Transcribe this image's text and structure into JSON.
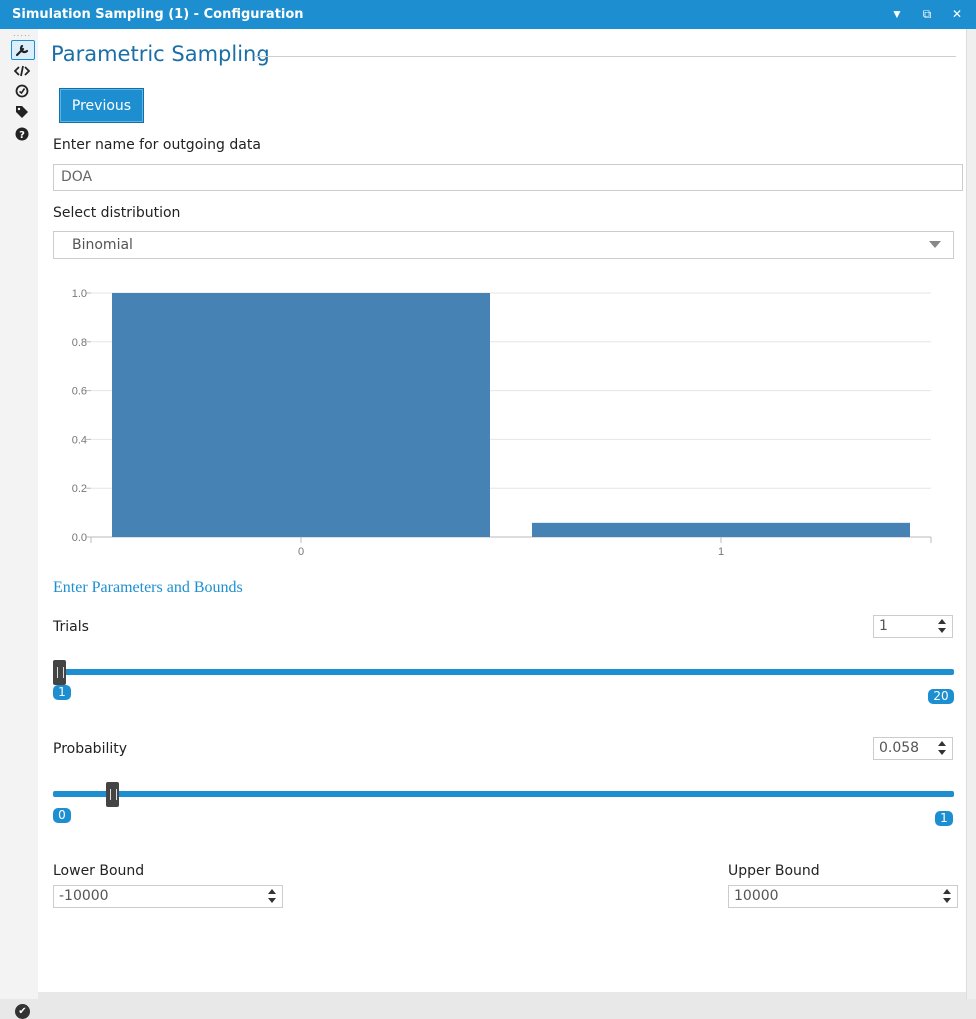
{
  "window": {
    "title": "Simulation Sampling (1) - Configuration",
    "btn_dropdown": "▼",
    "btn_restore": "⧉",
    "btn_close": "✕"
  },
  "sidebar": {
    "icons": [
      "wrench-icon",
      "code-icon",
      "compass-icon",
      "tag-icon",
      "help-icon"
    ],
    "grip": "·····"
  },
  "main": {
    "heading": "Parametric Sampling",
    "previous_label": "Previous",
    "name_label": "Enter name for outgoing data",
    "name_value": "DOA",
    "dist_label": "Select distribution",
    "dist_value": "Binomial",
    "params_title": "Enter Parameters and Bounds",
    "trials": {
      "label": "Trials",
      "value": "1",
      "min": "1",
      "max": "20",
      "fraction": 0
    },
    "probability": {
      "label": "Probability",
      "value": "0.058",
      "min": "0",
      "max": "1",
      "fraction": 0.058
    },
    "lower": {
      "label": "Lower Bound",
      "value": "-10000"
    },
    "upper": {
      "label": "Upper Bound",
      "value": "10000"
    }
  },
  "chart_data": {
    "type": "bar",
    "categories": [
      "0",
      "1"
    ],
    "values": [
      1.0,
      0.058
    ],
    "ylim": [
      0,
      1.0
    ],
    "yticks": [
      "0.0",
      "0.2",
      "0.4",
      "0.6",
      "0.8",
      "1.0"
    ],
    "bar_color": "#4682b4",
    "grid": true
  },
  "colors": {
    "accent": "#1d8fd1"
  }
}
